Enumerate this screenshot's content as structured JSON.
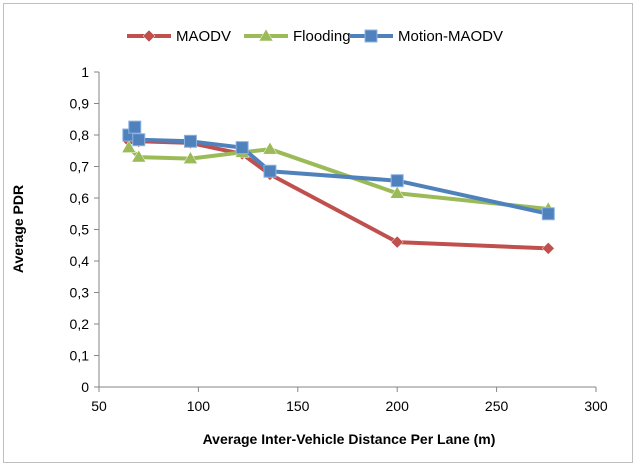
{
  "chart_data": {
    "type": "line",
    "title": "",
    "xlabel": "Average Inter-Vehicle Distance Per Lane (m)",
    "ylabel": "Average PDR",
    "xlim": [
      50,
      300
    ],
    "ylim": [
      0,
      1
    ],
    "x_ticks": [
      50,
      100,
      150,
      200,
      250,
      300
    ],
    "y_ticks": [
      0,
      0.1,
      0.2,
      0.3,
      0.4,
      0.5,
      0.6,
      0.7,
      0.8,
      0.9,
      1
    ],
    "y_tick_labels": [
      "0",
      "0,1",
      "0,2",
      "0,3",
      "0,4",
      "0,5",
      "0,6",
      "0,7",
      "0,8",
      "0,9",
      "1"
    ],
    "grid": false,
    "legend_position": "top",
    "series": [
      {
        "name": "MAODV",
        "color": "#c0504d",
        "marker": "diamond",
        "points": [
          [
            65,
            0.78
          ],
          [
            67,
            0.8
          ],
          [
            70,
            0.78
          ],
          [
            96,
            0.775
          ],
          [
            122,
            0.74
          ],
          [
            136,
            0.675
          ],
          [
            200,
            0.46
          ],
          [
            276,
            0.44
          ]
        ]
      },
      {
        "name": "Flooding",
        "color": "#9bbb59",
        "marker": "triangle",
        "points": [
          [
            65,
            0.76
          ],
          [
            70,
            0.73
          ],
          [
            96,
            0.725
          ],
          [
            122,
            0.745
          ],
          [
            136,
            0.755
          ],
          [
            200,
            0.615
          ],
          [
            276,
            0.565
          ]
        ]
      },
      {
        "name": "Motion-MAODV",
        "color": "#4f81bd",
        "marker": "square",
        "points": [
          [
            65,
            0.8
          ],
          [
            68,
            0.825
          ],
          [
            70,
            0.785
          ],
          [
            96,
            0.78
          ],
          [
            122,
            0.76
          ],
          [
            136,
            0.685
          ],
          [
            200,
            0.655
          ],
          [
            276,
            0.55
          ]
        ]
      }
    ]
  }
}
